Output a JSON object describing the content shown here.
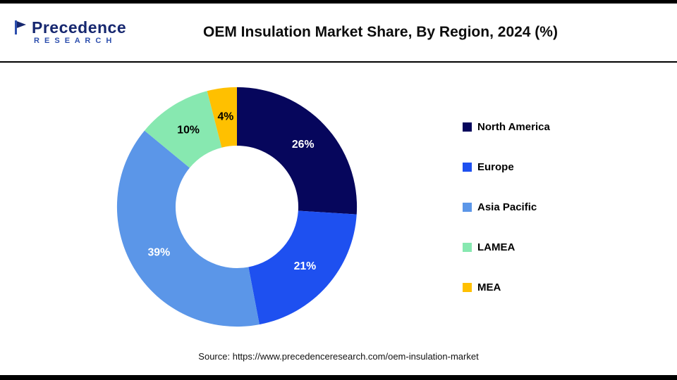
{
  "logo": {
    "name": "Precedence",
    "subtitle": "R E S E A R C H"
  },
  "chart_data": {
    "type": "pie",
    "subtype": "donut",
    "title": "OEM Insulation Market Share, By Region, 2024 (%)",
    "categories": [
      "North America",
      "Europe",
      "Asia Pacific",
      "LAMEA",
      "MEA"
    ],
    "values": [
      26,
      21,
      39,
      10,
      4
    ],
    "value_labels": [
      "26%",
      "21%",
      "39%",
      "10%",
      "4%"
    ],
    "colors": [
      "#06065c",
      "#1e50f0",
      "#5b96e8",
      "#87e8b0",
      "#ffc000"
    ],
    "label_colors": [
      "#ffffff",
      "#ffffff",
      "#ffffff",
      "#000000",
      "#000000"
    ],
    "donut_hole_ratio": 0.51,
    "start_angle_deg": 0,
    "direction": "clockwise",
    "legend_position": "right"
  },
  "footer": {
    "source": "Source: https://www.precedenceresearch.com/oem-insulation-market"
  }
}
